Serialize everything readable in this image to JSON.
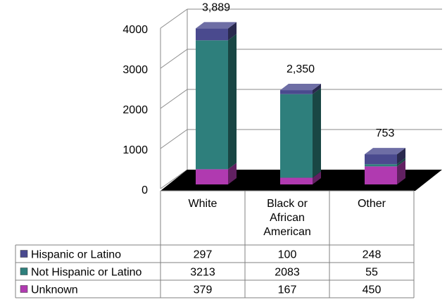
{
  "chart_data": {
    "type": "bar",
    "stacked": true,
    "three_d": true,
    "categories": [
      "White",
      "Black or African American",
      "Other"
    ],
    "category_lines": [
      [
        "White"
      ],
      [
        "Black or",
        "African",
        "American"
      ],
      [
        "Other"
      ]
    ],
    "totals": [
      "3,889",
      "2,350",
      "753"
    ],
    "series": [
      {
        "name": "Unknown",
        "values": [
          379,
          167,
          450
        ],
        "color": "#b03ab0"
      },
      {
        "name": "Not Hispanic or Latino",
        "values": [
          3213,
          2083,
          55
        ],
        "color": "#2e7f7c"
      },
      {
        "name": "Hispanic or Latino",
        "values": [
          297,
          100,
          248
        ],
        "color": "#4a4a8e"
      }
    ],
    "table_rows": [
      "Hispanic or Latino",
      "Not Hispanic or Latino",
      "Unknown"
    ],
    "ylim": [
      0,
      4000
    ],
    "yticks": [
      0,
      1000,
      2000,
      3000,
      4000
    ],
    "grid": true,
    "floor_color": "#000000",
    "legend": "data table below chart"
  }
}
